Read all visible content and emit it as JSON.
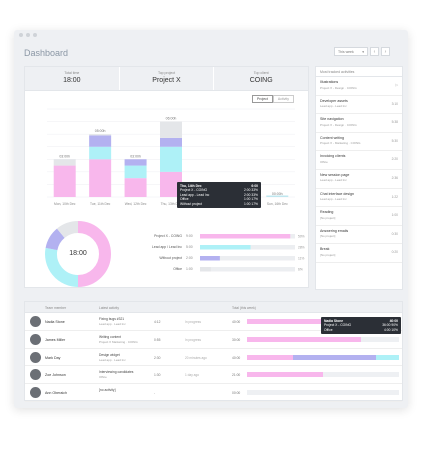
{
  "window": {
    "title": "Dashboard"
  },
  "toolbar": {
    "period": "This week",
    "prev": "‹",
    "next": "›"
  },
  "stats": [
    {
      "label": "Total time",
      "value": "18:00"
    },
    {
      "label": "Top project",
      "value": "Project X"
    },
    {
      "label": "Top client",
      "value": "COING"
    }
  ],
  "tabs": {
    "project": "Project",
    "activity": "Activity"
  },
  "colors": {
    "pink": "#f8b7ec",
    "cyan": "#aef1f7",
    "purple": "#b3b1f0",
    "grey": "#e4e6e9",
    "teal": "#bfe7ef"
  },
  "chart_data": {
    "type": "bar",
    "categories": [
      "Mon, 10th Dec",
      "Tue, 11th Dec",
      "Wed, 12th Dec",
      "Thu, 13th Dec",
      "Fri, 14th Dec",
      "Sat, 15th Dec",
      "Sun, 16th Dec"
    ],
    "bar_labels": [
      "03:00h",
      "05:00h",
      "03:00h",
      "06:00h",
      "00:00h",
      "00:00h",
      "00:00h"
    ],
    "series": [
      {
        "name": "Project X - COING",
        "values": [
          2.5,
          3.0,
          1.5,
          2.0,
          0,
          0,
          0
        ]
      },
      {
        "name": "Lead app - Lead Inc",
        "values": [
          0.0,
          1.0,
          1.0,
          2.0,
          0,
          0,
          0
        ]
      },
      {
        "name": "Office",
        "values": [
          0.0,
          0.9,
          0.5,
          0.7,
          0,
          0,
          0
        ]
      },
      {
        "name": "Without project",
        "values": [
          0.5,
          0.1,
          0.0,
          1.3,
          0,
          0,
          0
        ]
      }
    ],
    "ylim": [
      0,
      7
    ]
  },
  "day_tooltip": {
    "title": "Thu, 14th Dec",
    "total": "6:00",
    "rows": [
      {
        "name": "Project X - COING",
        "time": "2:00",
        "pct": "33%"
      },
      {
        "name": "Lead app - Lead Inc",
        "time": "2:00",
        "pct": "33%"
      },
      {
        "name": "Office",
        "time": "1:00",
        "pct": "17%"
      },
      {
        "name": "Without project",
        "time": "1:00",
        "pct": "17%"
      }
    ]
  },
  "donut": {
    "center": "18:00",
    "shares": [
      0.5,
      0.28,
      0.11,
      0.11
    ]
  },
  "breakdown": [
    {
      "name": "Project X - COING",
      "time": "9:00",
      "pct": "50%",
      "frac": 0.5
    },
    {
      "name": "Lead app / Lead Inc",
      "time": "5:00",
      "pct": "28%",
      "frac": 0.28
    },
    {
      "name": "Without project",
      "time": "2:00",
      "pct": "11%",
      "frac": 0.11
    },
    {
      "name": "Office",
      "time": "1:00",
      "pct": "6%",
      "frac": 0.06
    }
  ],
  "sidebar": {
    "header": "Most tracked activities",
    "items": [
      {
        "title": "Illustrations",
        "sub": "Project X - Design · COING",
        "right": "▷"
      },
      {
        "title": "Developer assets",
        "sub": "Lead app - Lead Inc",
        "right": "3:10"
      },
      {
        "title": "Site navigation",
        "sub": "Project X - Design · COING",
        "right": "5:38"
      },
      {
        "title": "Content writing",
        "sub": "Project X - Marketing · COING",
        "right": "5:30"
      },
      {
        "title": "Invoicing clients",
        "sub": "Office",
        "right": "2:20"
      },
      {
        "title": "New session page",
        "sub": "Lead app - Lead Inc",
        "right": "2:36"
      },
      {
        "title": "Chat interface design",
        "sub": "Lead app - Lead Inc",
        "right": "1:22"
      },
      {
        "title": "Reading",
        "sub": "[No project]",
        "right": "1:00"
      },
      {
        "title": "Answering emails",
        "sub": "[No project]",
        "right": "0:30"
      },
      {
        "title": "Break",
        "sub": "[No project]",
        "right": "0:20"
      }
    ]
  },
  "team": {
    "headers": {
      "member": "Team member",
      "activity": "Latest activity",
      "total": "Total (this week)"
    },
    "rows": [
      {
        "name": "Nadia Stone",
        "activity": "Fixing bugs #321",
        "project": "Lead app · Lead Inc",
        "time": "4:12",
        "when": "In progress",
        "total": "40:00",
        "segs": [
          0.55,
          0.1,
          0.1
        ]
      },
      {
        "name": "James Miller",
        "activity": "Writing content",
        "project": "Project X Marketing · COING",
        "time": "0:55",
        "when": "In progress",
        "total": "30:00",
        "segs": [
          0.75,
          0,
          0
        ]
      },
      {
        "name": "Mark Day",
        "activity": "Design widget",
        "project": "Lead app · Lead Inc",
        "time": "2:30",
        "when": "20 minutes ago",
        "total": "40:00",
        "segs": [
          0.3,
          0.55,
          0.15
        ]
      },
      {
        "name": "Zoe Johnson",
        "activity": "Interviewing candidates",
        "project": "Office",
        "time": "1:30",
        "when": "1 day ago",
        "total": "21:00",
        "segs": [
          0.5,
          0,
          0
        ]
      },
      {
        "name": "Ann Oberaich",
        "activity": "[no activity]",
        "project": "",
        "time": "-",
        "when": "",
        "total": "00:00",
        "segs": [
          0,
          0,
          0
        ]
      }
    ]
  },
  "member_tooltip": {
    "title": "Nadia Stone",
    "total": "40:00",
    "rows": [
      {
        "name": "Project X - COING",
        "time": "36:00",
        "pct": "90%"
      },
      {
        "name": "Office",
        "time": "4:00",
        "pct": "10%"
      }
    ]
  }
}
